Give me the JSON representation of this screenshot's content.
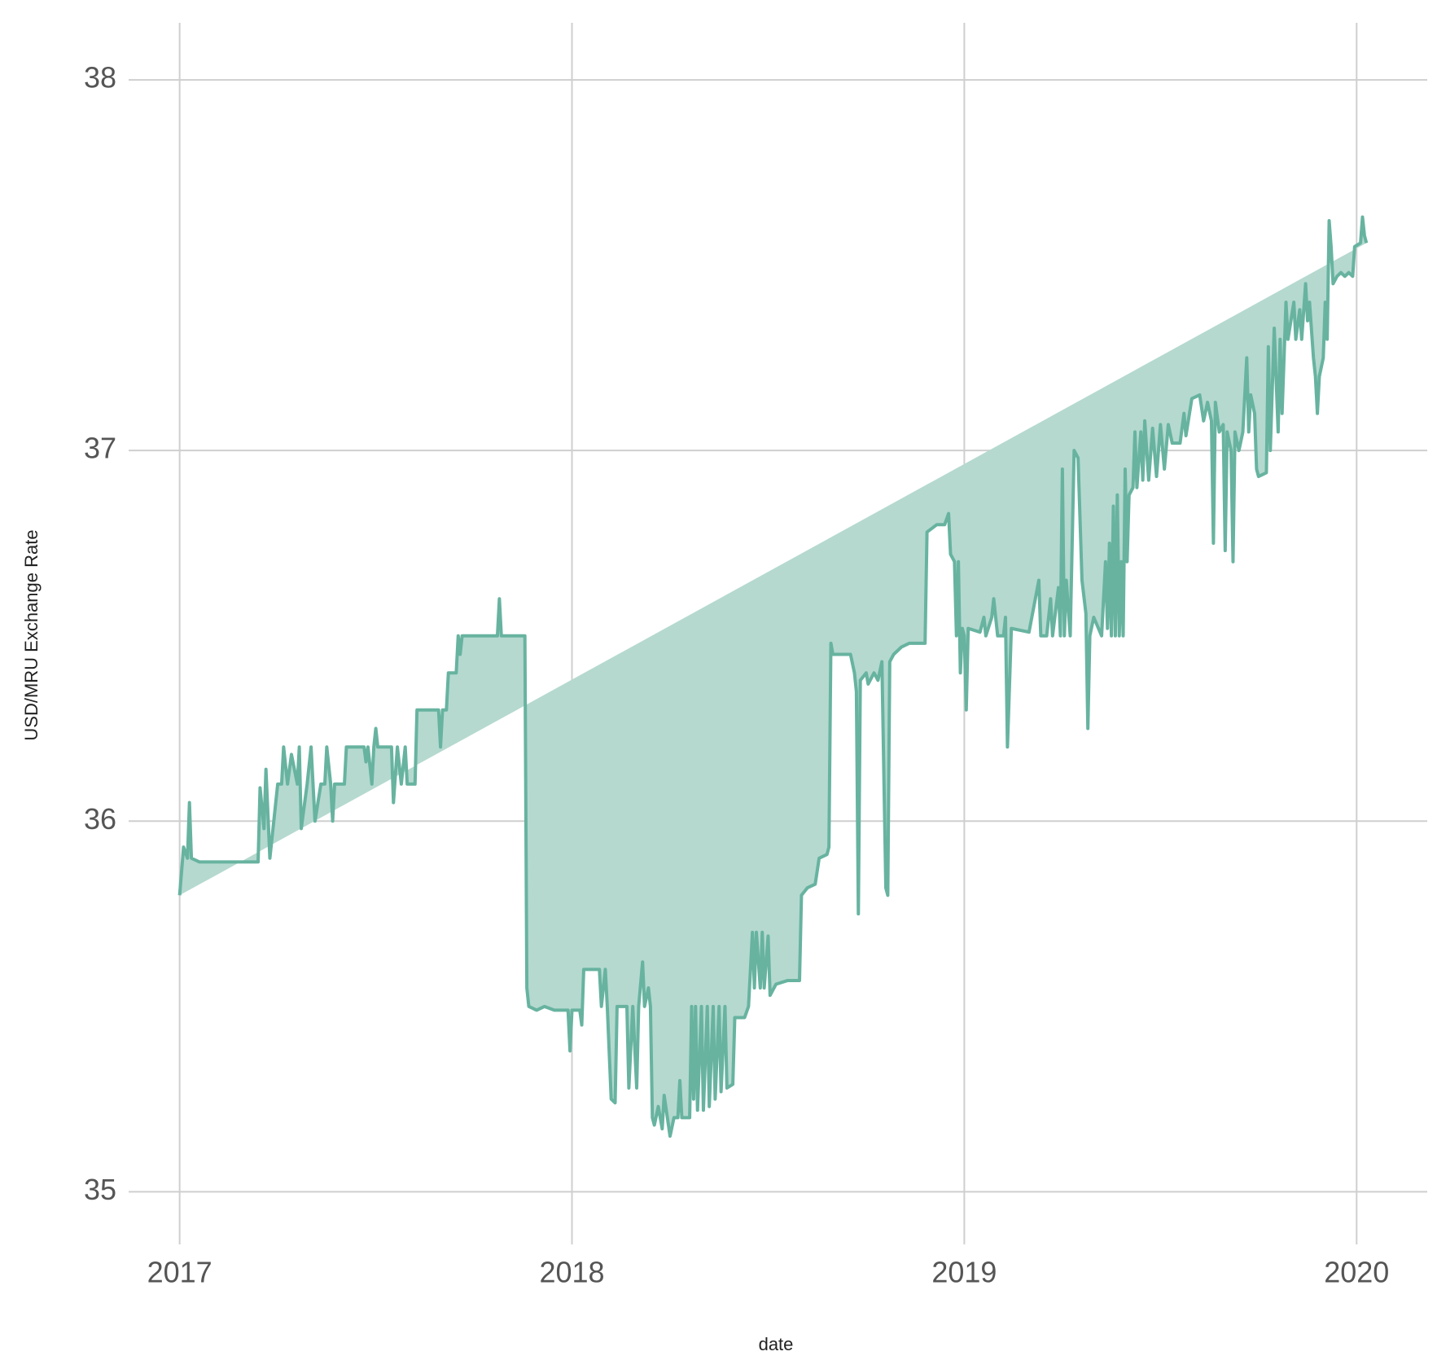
{
  "chart_data": {
    "type": "area_line",
    "x_label": "date",
    "y_label": "USD/MRU Exchange Rate",
    "color": "#67b3a0",
    "fill_color": "#b5d9cf",
    "grid": true,
    "xlim": [
      2016.87,
      2020.18
    ],
    "ylim": [
      34.858,
      38.154
    ],
    "xticks": [
      2017,
      2018,
      2019,
      2020
    ],
    "yticks": [
      35,
      36,
      37,
      38
    ],
    "x": [
      2017.0,
      2017.01,
      2017.02,
      2017.025,
      2017.03,
      2017.05,
      2017.2,
      2017.205,
      2017.215,
      2017.22,
      2017.23,
      2017.25,
      2017.26,
      2017.265,
      2017.275,
      2017.285,
      2017.3,
      2017.305,
      2017.31,
      2017.325,
      2017.335,
      2017.345,
      2017.36,
      2017.37,
      2017.375,
      2017.385,
      2017.39,
      2017.395,
      2017.42,
      2017.425,
      2017.47,
      2017.475,
      2017.48,
      2017.49,
      2017.495,
      2017.5,
      2017.505,
      2017.54,
      2017.545,
      2017.555,
      2017.565,
      2017.575,
      2017.58,
      2017.6,
      2017.605,
      2017.66,
      2017.665,
      2017.67,
      2017.68,
      2017.685,
      2017.705,
      2017.71,
      2017.715,
      2017.72,
      2017.81,
      2017.815,
      2017.82,
      2017.88,
      2017.885,
      2017.89,
      2017.91,
      2017.93,
      2017.955,
      2017.99,
      2017.995,
      2018.0,
      2018.02,
      2018.025,
      2018.03,
      2018.07,
      2018.075,
      2018.085,
      2018.09,
      2018.1,
      2018.11,
      2018.115,
      2018.14,
      2018.145,
      2018.155,
      2018.165,
      2018.17,
      2018.18,
      2018.185,
      2018.195,
      2018.2,
      2018.205,
      2018.21,
      2018.22,
      2018.23,
      2018.235,
      2018.25,
      2018.26,
      2018.27,
      2018.275,
      2018.28,
      2018.3,
      2018.305,
      2018.31,
      2018.315,
      2018.32,
      2018.33,
      2018.335,
      2018.345,
      2018.35,
      2018.36,
      2018.365,
      2018.375,
      2018.38,
      2018.39,
      2018.395,
      2018.41,
      2018.415,
      2018.44,
      2018.45,
      2018.46,
      2018.465,
      2018.47,
      2018.48,
      2018.485,
      2018.49,
      2018.5,
      2018.505,
      2018.52,
      2018.55,
      2018.58,
      2018.585,
      2018.6,
      2018.62,
      2018.63,
      2018.65,
      2018.655,
      2018.66,
      2018.665,
      2018.71,
      2018.72,
      2018.725,
      2018.73,
      2018.735,
      2018.75,
      2018.755,
      2018.77,
      2018.78,
      2018.79,
      2018.8,
      2018.805,
      2018.81,
      2018.82,
      2018.84,
      2018.86,
      2018.9,
      2018.905,
      2018.93,
      2018.95,
      2018.96,
      2018.965,
      2018.975,
      2018.98,
      2018.985,
      2018.99,
      2018.995,
      2019.0,
      2019.005,
      2019.01,
      2019.04,
      2019.05,
      2019.055,
      2019.07,
      2019.075,
      2019.085,
      2019.1,
      2019.105,
      2019.11,
      2019.12,
      2019.165,
      2019.19,
      2019.195,
      2019.21,
      2019.22,
      2019.225,
      2019.24,
      2019.245,
      2019.25,
      2019.255,
      2019.26,
      2019.27,
      2019.28,
      2019.29,
      2019.3,
      2019.31,
      2019.315,
      2019.32,
      2019.33,
      2019.35,
      2019.36,
      2019.365,
      2019.37,
      2019.375,
      2019.38,
      2019.385,
      2019.39,
      2019.395,
      2019.4,
      2019.405,
      2019.41,
      2019.415,
      2019.42,
      2019.43,
      2019.435,
      2019.44,
      2019.45,
      2019.455,
      2019.46,
      2019.47,
      2019.48,
      2019.49,
      2019.5,
      2019.51,
      2019.52,
      2019.53,
      2019.55,
      2019.56,
      2019.565,
      2019.58,
      2019.6,
      2019.61,
      2019.62,
      2019.63,
      2019.635,
      2019.64,
      2019.65,
      2019.66,
      2019.665,
      2019.67,
      2019.68,
      2019.685,
      2019.69,
      2019.7,
      2019.71,
      2019.72,
      2019.725,
      2019.73,
      2019.74,
      2019.745,
      2019.75,
      2019.77,
      2019.775,
      2019.78,
      2019.79,
      2019.8,
      2019.805,
      2019.81,
      2019.82,
      2019.825,
      2019.84,
      2019.845,
      2019.855,
      2019.86,
      2019.87,
      2019.875,
      2019.88,
      2019.89,
      2019.895,
      2019.9,
      2019.905,
      2019.915,
      2019.92,
      2019.925,
      2019.93,
      2019.935,
      2019.94,
      2019.95,
      2019.96,
      2019.97,
      2019.98,
      2019.99,
      2019.995,
      2020.01,
      2020.015,
      2020.02,
      2020.025
    ],
    "values": [
      35.8,
      35.93,
      35.9,
      36.05,
      35.9,
      35.89,
      35.89,
      36.09,
      35.98,
      36.14,
      35.9,
      36.1,
      36.1,
      36.2,
      36.1,
      36.18,
      36.1,
      36.2,
      35.98,
      36.1,
      36.2,
      36.0,
      36.1,
      36.1,
      36.2,
      36.1,
      36.0,
      36.1,
      36.1,
      36.2,
      36.2,
      36.16,
      36.2,
      36.1,
      36.2,
      36.25,
      36.2,
      36.2,
      36.05,
      36.2,
      36.1,
      36.2,
      36.1,
      36.1,
      36.3,
      36.3,
      36.2,
      36.3,
      36.3,
      36.4,
      36.4,
      36.5,
      36.45,
      36.5,
      36.5,
      36.6,
      36.5,
      36.5,
      35.55,
      35.5,
      35.49,
      35.5,
      35.49,
      35.49,
      35.38,
      35.49,
      35.49,
      35.45,
      35.6,
      35.6,
      35.5,
      35.6,
      35.5,
      35.25,
      35.24,
      35.5,
      35.5,
      35.28,
      35.5,
      35.28,
      35.5,
      35.62,
      35.5,
      35.55,
      35.5,
      35.2,
      35.18,
      35.23,
      35.17,
      35.26,
      35.15,
      35.2,
      35.2,
      35.3,
      35.2,
      35.2,
      35.5,
      35.25,
      35.5,
      35.22,
      35.5,
      35.22,
      35.5,
      35.23,
      35.5,
      35.25,
      35.5,
      35.27,
      35.5,
      35.28,
      35.29,
      35.47,
      35.47,
      35.5,
      35.7,
      35.55,
      35.7,
      35.55,
      35.7,
      35.55,
      35.69,
      35.53,
      35.56,
      35.57,
      35.57,
      35.8,
      35.82,
      35.83,
      35.9,
      35.91,
      35.93,
      36.48,
      36.45,
      36.45,
      36.4,
      36.35,
      35.75,
      36.38,
      36.4,
      36.37,
      36.4,
      36.38,
      36.43,
      35.82,
      35.8,
      36.43,
      36.45,
      36.47,
      36.48,
      36.48,
      36.78,
      36.8,
      36.8,
      36.83,
      36.72,
      36.7,
      36.5,
      36.7,
      36.4,
      36.52,
      36.5,
      36.3,
      36.52,
      36.51,
      36.55,
      36.5,
      36.55,
      36.6,
      36.5,
      36.5,
      36.55,
      36.2,
      36.52,
      36.51,
      36.65,
      36.5,
      36.5,
      36.6,
      36.5,
      36.63,
      36.5,
      36.95,
      36.5,
      36.65,
      36.5,
      37.0,
      36.98,
      36.65,
      36.56,
      36.25,
      36.5,
      36.55,
      36.5,
      36.7,
      36.52,
      36.75,
      36.5,
      36.85,
      36.5,
      36.88,
      36.5,
      36.7,
      36.5,
      36.95,
      36.7,
      36.88,
      36.9,
      37.05,
      36.9,
      37.05,
      36.92,
      37.08,
      36.92,
      37.06,
      36.93,
      37.07,
      36.95,
      37.07,
      37.02,
      37.02,
      37.1,
      37.04,
      37.14,
      37.15,
      37.08,
      37.13,
      37.08,
      36.75,
      37.13,
      37.05,
      37.07,
      36.73,
      37.05,
      37.0,
      36.7,
      37.05,
      37.0,
      37.05,
      37.25,
      37.05,
      37.15,
      37.1,
      36.95,
      36.93,
      36.94,
      37.28,
      37.0,
      37.33,
      37.05,
      37.3,
      37.1,
      37.4,
      37.3,
      37.4,
      37.3,
      37.38,
      37.3,
      37.45,
      37.35,
      37.4,
      37.25,
      37.2,
      37.1,
      37.2,
      37.25,
      37.4,
      37.3,
      37.62,
      37.55,
      37.45,
      37.47,
      37.48,
      37.47,
      37.48,
      37.47,
      37.55,
      37.56,
      37.63,
      37.58,
      37.56
    ]
  }
}
